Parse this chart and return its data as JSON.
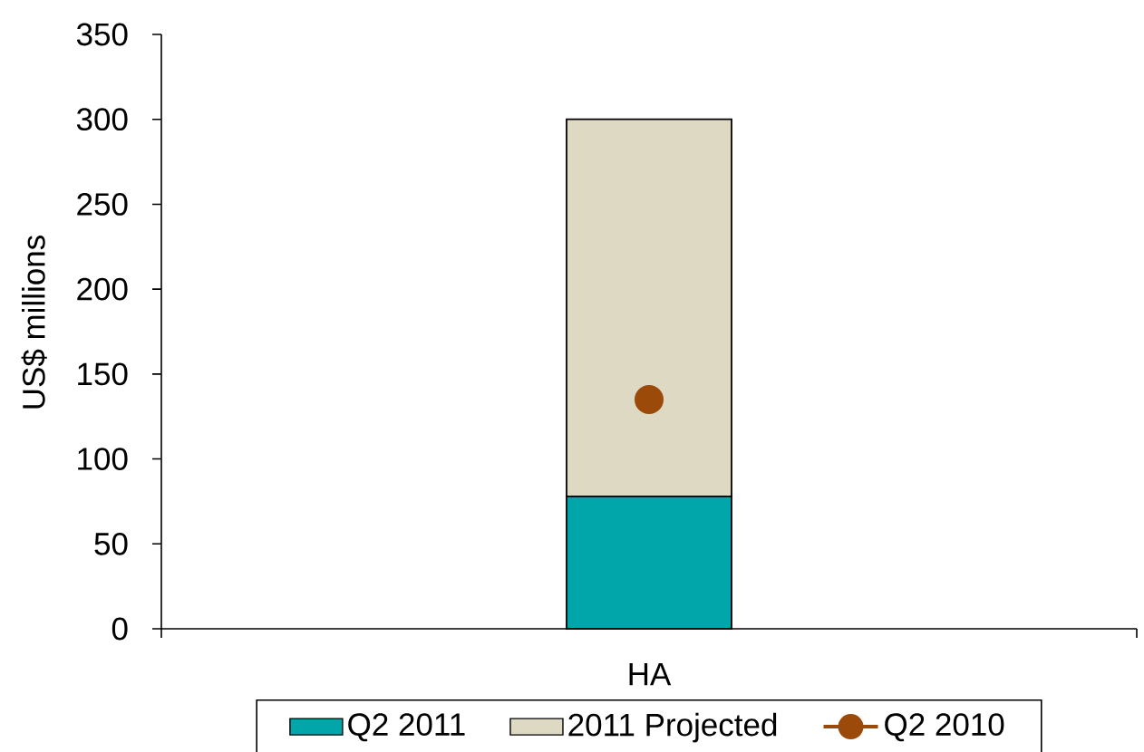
{
  "chart_data": {
    "type": "bar",
    "stacked": true,
    "ylabel": "US$ millions",
    "categories": [
      "HA"
    ],
    "series": [
      {
        "name": "Q2 2011",
        "color": "#00a6aa",
        "values": [
          78
        ]
      },
      {
        "name": "2011 Projected",
        "color": "#ddd9c3",
        "values": [
          222
        ]
      },
      {
        "name": "Q2 2010",
        "type": "line",
        "color": "#9c4a0a",
        "marker": "circle",
        "values": [
          135
        ]
      }
    ],
    "ylim": [
      0,
      350
    ],
    "yticks": [
      0,
      50,
      100,
      150,
      200,
      250,
      300,
      350
    ],
    "legend": "bottom"
  }
}
